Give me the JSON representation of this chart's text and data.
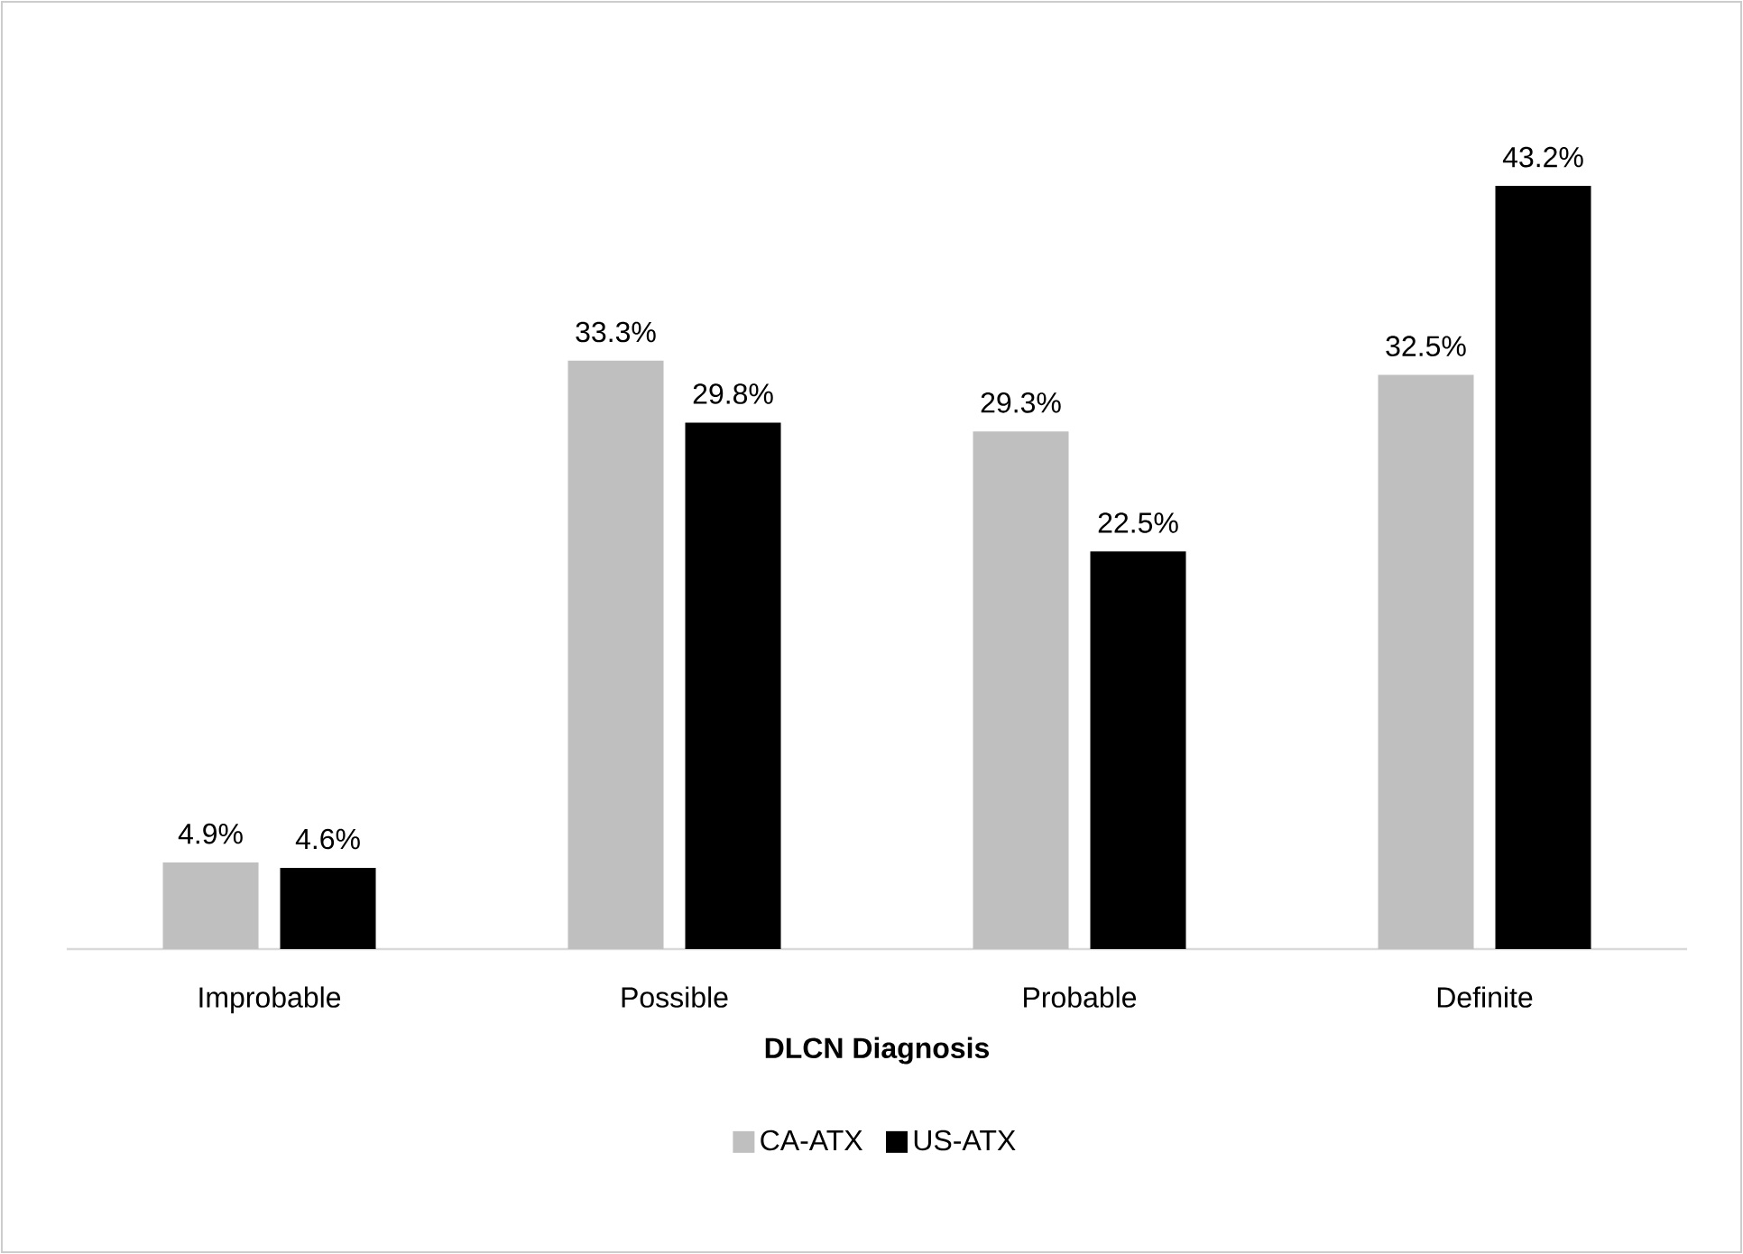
{
  "chart_data": {
    "type": "bar",
    "xlabel": "DLCN Diagnosis",
    "categories": [
      "Improbable",
      "Possible",
      "Probable",
      "Definite"
    ],
    "series": [
      {
        "name": "CA-ATX",
        "color": "#bfbfbf",
        "values": [
          4.9,
          33.3,
          29.3,
          32.5
        ],
        "value_labels": [
          "4.9%",
          "33.3%",
          "29.3%",
          "32.5%"
        ]
      },
      {
        "name": "US-ATX",
        "color": "#000000",
        "values": [
          4.6,
          29.8,
          22.5,
          43.2
        ],
        "value_labels": [
          "4.6%",
          "29.8%",
          "22.5%",
          "43.2%"
        ]
      }
    ],
    "legend": "bottom"
  }
}
